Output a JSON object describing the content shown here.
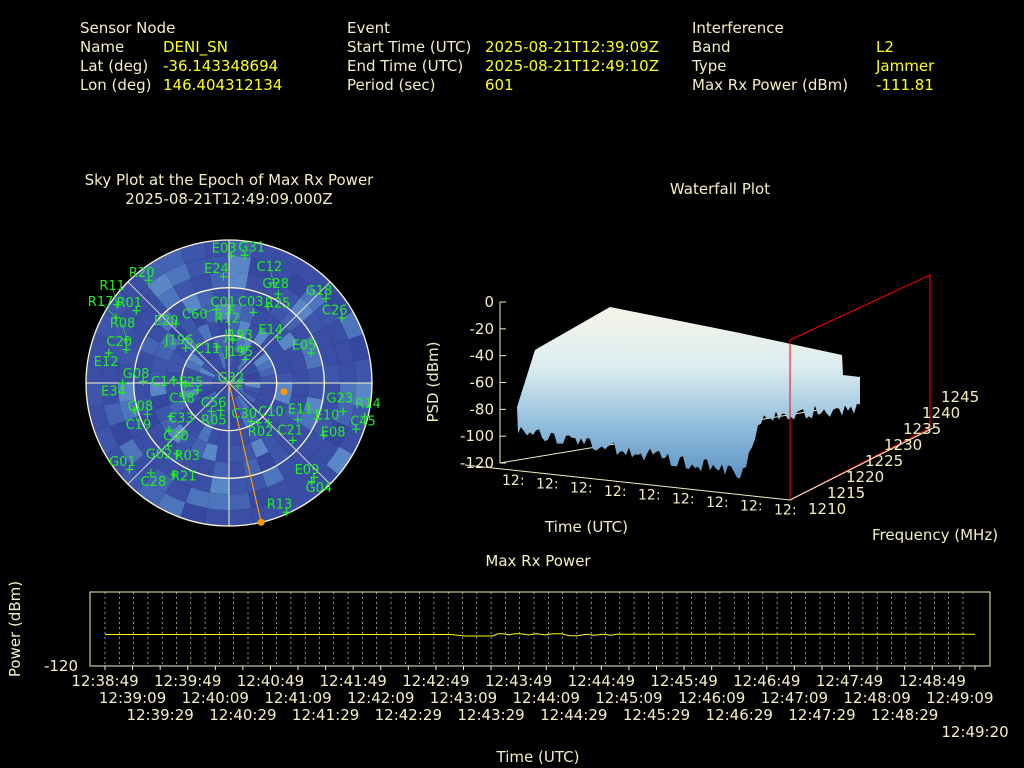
{
  "header": {
    "sensor": {
      "heading": "Sensor Node",
      "rows": [
        {
          "label": "Name",
          "value": "DENI_SN"
        },
        {
          "label": "Lat (deg)",
          "value": "-36.143348694"
        },
        {
          "label": "Lon (deg)",
          "value": "146.404312134"
        }
      ]
    },
    "event": {
      "heading": "Event",
      "rows": [
        {
          "label": "Start Time (UTC)",
          "value": "2025-08-21T12:39:09Z"
        },
        {
          "label": "End Time (UTC)",
          "value": "2025-08-21T12:49:10Z"
        },
        {
          "label": "Period (sec)",
          "value": "601"
        }
      ]
    },
    "interference": {
      "heading": "Interference",
      "rows": [
        {
          "label": "Band",
          "value": "L2"
        },
        {
          "label": "Type",
          "value": "Jammer"
        },
        {
          "label": "Max Rx Power (dBm)",
          "value": "-111.81"
        }
      ]
    }
  },
  "colors": {
    "label": "#f3efc2",
    "value": "#ffff1a",
    "satellite": "#22ee22",
    "jammer": "#ff9900",
    "plane": "#ff0000",
    "power_line": "#ffff00"
  },
  "sky_plot": {
    "title": "Sky Plot at the Epoch of Max Rx Power",
    "subtitle": "2025-08-21T12:49:09.000Z",
    "elevation_rings": [
      0,
      30,
      60
    ],
    "jammer": {
      "az": 99,
      "el": 55,
      "direction_az": 167
    },
    "satellites": [
      {
        "prn": "E03",
        "az": 1,
        "el": 10
      },
      {
        "prn": "G31",
        "az": 7,
        "el": 9
      },
      {
        "prn": "E24",
        "az": 357,
        "el": 23
      },
      {
        "prn": "R20",
        "az": 322,
        "el": 8
      },
      {
        "prn": "C12",
        "az": 24,
        "el": 21
      },
      {
        "prn": "G28",
        "az": 29,
        "el": 26
      },
      {
        "prn": "R11",
        "az": 305,
        "el": 4
      },
      {
        "prn": "R17",
        "az": 300,
        "el": 8
      },
      {
        "prn": "R01",
        "az": 308,
        "el": 16
      },
      {
        "prn": "G18",
        "az": 49,
        "el": 9
      },
      {
        "prn": "C26",
        "az": 60,
        "el": 8
      },
      {
        "prn": "E14",
        "az": 47,
        "el": 48
      },
      {
        "prn": "E05",
        "az": 70,
        "el": 35
      },
      {
        "prn": "R12",
        "az": 5,
        "el": 63
      },
      {
        "prn": "J193",
        "az": 20,
        "el": 67
      },
      {
        "prn": "J195",
        "az": 35,
        "el": 72
      },
      {
        "prn": "G32",
        "az": 107,
        "el": 84
      },
      {
        "prn": "G23",
        "az": 104,
        "el": 16
      },
      {
        "prn": "R14",
        "az": 104,
        "el": 2
      },
      {
        "prn": "C45",
        "az": 110,
        "el": 5
      },
      {
        "prn": "E11",
        "az": 118,
        "el": 41
      },
      {
        "prn": "E10",
        "az": 112,
        "el": 30
      },
      {
        "prn": "E08",
        "az": 119,
        "el": 22
      },
      {
        "prn": "C21",
        "az": 132,
        "el": 36
      },
      {
        "prn": "E09",
        "az": 138,
        "el": 10
      },
      {
        "prn": "G04",
        "az": 140,
        "el": 9
      },
      {
        "prn": "R02",
        "az": 144,
        "el": 59
      },
      {
        "prn": "C30",
        "az": 150,
        "el": 62
      },
      {
        "prn": "C10",
        "az": 135,
        "el": 55
      },
      {
        "prn": "R13",
        "az": 156,
        "el": 1
      },
      {
        "prn": "G01",
        "az": 229,
        "el": 7
      },
      {
        "prn": "C28",
        "az": 221,
        "el": 15
      },
      {
        "prn": "R21",
        "az": 211,
        "el": 23
      },
      {
        "prn": "R03",
        "az": 216,
        "el": 35
      },
      {
        "prn": "G02",
        "az": 224,
        "el": 35
      },
      {
        "prn": "C19",
        "az": 254,
        "el": 28
      },
      {
        "prn": "C08",
        "az": 249,
        "el": 35
      },
      {
        "prn": "C33",
        "az": 240,
        "el": 48
      },
      {
        "prn": "C40",
        "az": 232,
        "el": 42
      },
      {
        "prn": "E25",
        "az": 257,
        "el": 70
      },
      {
        "prn": "R05",
        "az": 212,
        "el": 69
      },
      {
        "prn": "C56",
        "az": 197,
        "el": 72
      },
      {
        "prn": "E34",
        "az": 270,
        "el": 23
      },
      {
        "prn": "G08",
        "az": 271,
        "el": 36
      },
      {
        "prn": "C14",
        "az": 273,
        "el": 55
      },
      {
        "prn": "C58",
        "az": 269,
        "el": 63
      },
      {
        "prn": "E12",
        "az": 284,
        "el": 12
      },
      {
        "prn": "J196",
        "az": 309,
        "el": 55
      },
      {
        "prn": "C11",
        "az": 342,
        "el": 66
      },
      {
        "prn": "C60",
        "az": 350,
        "el": 43
      },
      {
        "prn": "C01",
        "az": 1,
        "el": 44
      },
      {
        "prn": "C03",
        "az": 19,
        "el": 43
      },
      {
        "prn": "R25",
        "az": 27,
        "el": 36
      },
      {
        "prn": "R08",
        "az": 293,
        "el": 20
      },
      {
        "prn": "C20",
        "az": 288,
        "el": 22
      },
      {
        "prn": "E20",
        "az": 318,
        "el": 40
      }
    ]
  },
  "waterfall": {
    "title": "Waterfall Plot",
    "zlabel": "PSD (dBm)",
    "xlabel": "Time (UTC)",
    "ylabel": "Frequency (MHz)",
    "zlim": [
      -120,
      0
    ],
    "z_ticks": [
      "0",
      "-20",
      "-40",
      "-60",
      "-80",
      "-100",
      "-120"
    ],
    "freq_ticks": [
      "1210",
      "1215",
      "1220",
      "1225",
      "1230",
      "1235",
      "1240",
      "1245"
    ],
    "time_tick_label": "12:"
  },
  "chart_data": {
    "type": "line",
    "title": "Max Rx Power",
    "xlabel": "Time (UTC)",
    "ylabel": "Power (dBm)",
    "ylim": [
      -120,
      -100
    ],
    "y_ticks": [
      "-120"
    ],
    "x_ticks": [
      "12:38:49",
      "12:39:09",
      "12:39:29",
      "12:39:49",
      "12:40:09",
      "12:40:29",
      "12:40:49",
      "12:41:09",
      "12:41:29",
      "12:41:49",
      "12:42:09",
      "12:42:29",
      "12:42:49",
      "12:43:09",
      "12:43:29",
      "12:43:49",
      "12:44:09",
      "12:44:29",
      "12:44:49",
      "12:45:09",
      "12:45:29",
      "12:45:49",
      "12:46:09",
      "12:46:29",
      "12:46:49",
      "12:47:09",
      "12:47:29",
      "12:47:49",
      "12:48:09",
      "12:48:29",
      "12:48:49",
      "12:49:09",
      "12:49:20"
    ],
    "x": [
      "12:38:49",
      "12:40:00",
      "12:41:00",
      "12:42:00",
      "12:43:00",
      "12:43:10",
      "12:43:30",
      "12:43:34",
      "12:43:38",
      "12:43:42",
      "12:43:46",
      "12:43:50",
      "12:43:56",
      "12:44:02",
      "12:44:08",
      "12:44:14",
      "12:44:20",
      "12:44:26",
      "12:44:32",
      "12:44:38",
      "12:44:44",
      "12:44:50",
      "12:44:56",
      "12:45:00",
      "12:46:00",
      "12:47:00",
      "12:48:00",
      "12:49:20"
    ],
    "values": [
      -111.5,
      -111.5,
      -111.5,
      -111.5,
      -111.5,
      -111.9,
      -111.9,
      -111.3,
      -111.3,
      -111.6,
      -111.3,
      -111.3,
      -111.6,
      -111.3,
      -111.6,
      -111.3,
      -111.3,
      -111.8,
      -111.8,
      -111.4,
      -111.7,
      -111.4,
      -111.7,
      -111.4,
      -111.4,
      -111.4,
      -111.4,
      -111.4
    ]
  }
}
